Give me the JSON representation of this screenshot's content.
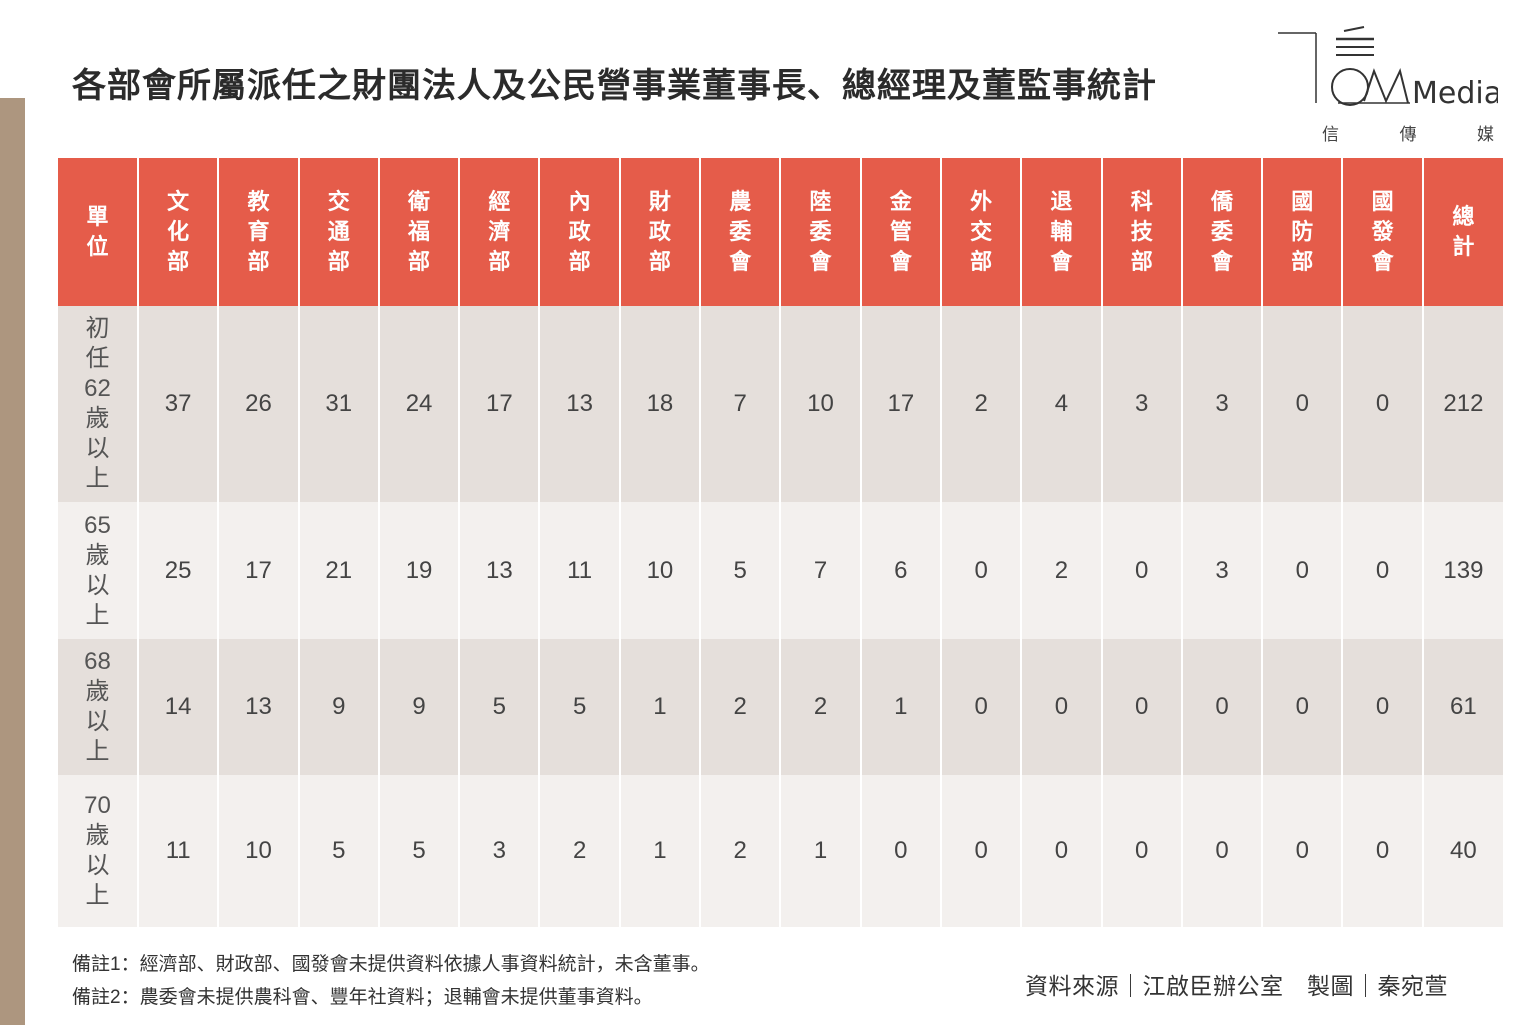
{
  "title": "各部會所屬派任之財團法人及公民營事業董事長、總經理及董監事統計",
  "logo": {
    "wordmark": "Media",
    "cn": [
      "信",
      "傳",
      "媒"
    ]
  },
  "colors": {
    "header": "#e55c4a",
    "row_dark": "#e5dfdb",
    "row_light": "#f3f0ee",
    "side_bar": "#ad967f"
  },
  "chart_data": {
    "type": "table",
    "row_header_label": "單位",
    "columns": [
      "文化部",
      "教育部",
      "交通部",
      "衛福部",
      "經濟部",
      "內政部",
      "財政部",
      "農委會",
      "陸委會",
      "金管會",
      "外交部",
      "退輔會",
      "科技部",
      "僑委會",
      "國防部",
      "國發會",
      "總計"
    ],
    "rows": [
      {
        "label": "初任62歲以上",
        "values": [
          37,
          26,
          31,
          24,
          17,
          13,
          18,
          7,
          10,
          17,
          2,
          4,
          3,
          3,
          0,
          0,
          212
        ]
      },
      {
        "label": "65歲以上",
        "values": [
          25,
          17,
          21,
          19,
          13,
          11,
          10,
          5,
          7,
          6,
          0,
          2,
          0,
          3,
          0,
          0,
          139
        ]
      },
      {
        "label": "68歲以上",
        "values": [
          14,
          13,
          9,
          9,
          5,
          5,
          1,
          2,
          2,
          1,
          0,
          0,
          0,
          0,
          0,
          0,
          61
        ]
      },
      {
        "label": "70歲以上",
        "values": [
          11,
          10,
          5,
          5,
          3,
          2,
          1,
          2,
          1,
          0,
          0,
          0,
          0,
          0,
          0,
          0,
          40
        ]
      }
    ]
  },
  "notes": [
    "備註1：經濟部、財政部、國發會未提供資料依據人事資料統計，未含董事。",
    "備註2：農委會未提供農科會、豐年社資料；退輔會未提供董事資料。"
  ],
  "source": "資料來源｜江啟臣辦公室　製圖｜秦宛萱"
}
